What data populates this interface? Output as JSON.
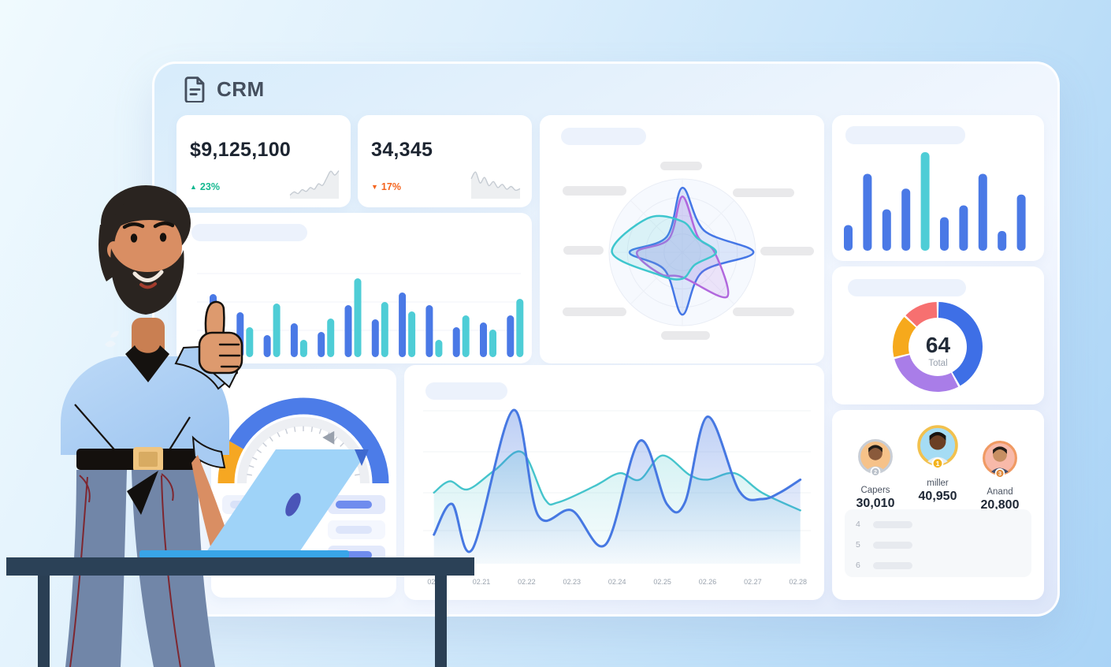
{
  "app": {
    "title": "CRM"
  },
  "kpis": [
    {
      "value": "$9,125,100",
      "delta": "23%",
      "direction": "up",
      "spark": [
        1,
        2.2,
        1.6,
        3,
        2.4,
        3.8,
        3.2,
        5.2,
        4.6,
        7.2,
        9.8,
        8.4,
        10
      ]
    },
    {
      "value": "34,345",
      "delta": "17%",
      "direction": "down",
      "spark": [
        7,
        9.5,
        5.5,
        7.5,
        4.5,
        6,
        3.8,
        5,
        3.2,
        4.2,
        2.8,
        3.4
      ]
    }
  ],
  "leaderboard": {
    "entries": [
      {
        "rank": "2",
        "name": "Capers",
        "value": "30,010",
        "ring": "#c9ced6",
        "bg": "#f6c289",
        "badge": "#b9c0c9",
        "skin": "#8a5a3b",
        "hair": "#201b17",
        "shirt": "#c8ced5"
      },
      {
        "rank": "1",
        "name": "miller",
        "value": "40,950",
        "ring": "#f2c14e",
        "bg": "#a5dcf4",
        "badge": "#f3b31e",
        "skin": "#6b3f24",
        "hair": "#171310",
        "shirt": "#e8eef2"
      },
      {
        "rank": "3",
        "name": "Anand",
        "value": "20,800",
        "ring": "#f09a63",
        "bg": "#f8b9a9",
        "badge": "#e08a3c",
        "skin": "#c78f62",
        "hair": "#241d18",
        "shirt": "#46506b"
      }
    ],
    "more_rows": [
      "4",
      "5",
      "6"
    ]
  },
  "chart_data": [
    {
      "type": "bar",
      "title": "",
      "categories": [],
      "series": [
        {
          "name": "series-blue",
          "color": "#4a79e6",
          "values": [
            80,
            57,
            28,
            43,
            32,
            66,
            48,
            82,
            66,
            38,
            44,
            53
          ]
        },
        {
          "name": "series-teal",
          "color": "#4ecdd6",
          "values": [
            33,
            38,
            68,
            22,
            49,
            100,
            70,
            58,
            22,
            53,
            35,
            74
          ]
        }
      ],
      "ylim": [
        0,
        100
      ],
      "grid": true
    },
    {
      "type": "radar",
      "axes": 8,
      "max": 100,
      "series": [
        {
          "name": "series-blue",
          "color": "#4577e6",
          "values": [
            88,
            42,
            97,
            38,
            85,
            34,
            72,
            30
          ]
        },
        {
          "name": "series-purple",
          "color": "#b168dd",
          "values": [
            76,
            30,
            44,
            86,
            34,
            42,
            62,
            26
          ]
        },
        {
          "name": "series-teal",
          "color": "#3ec6ce",
          "values": [
            42,
            28,
            46,
            24,
            36,
            44,
            96,
            66
          ]
        }
      ]
    },
    {
      "type": "bar",
      "title": "",
      "categories": [],
      "values": [
        26,
        78,
        42,
        63,
        100,
        34,
        46,
        78,
        20,
        57
      ],
      "color": "#4a79e6",
      "highlight_index": 4,
      "highlight_color": "#4ecdd6",
      "ylim": [
        0,
        100
      ],
      "grid": false
    },
    {
      "type": "donut",
      "center_value": "64",
      "center_label": "Total",
      "segments": [
        {
          "value": 42,
          "color": "#3e6fe6"
        },
        {
          "value": 29,
          "color": "#a97de8"
        },
        {
          "value": 16,
          "color": "#f6a91c"
        },
        {
          "value": 13,
          "color": "#f77070"
        }
      ]
    },
    {
      "type": "gauge",
      "value": "55",
      "min": 0,
      "max": 100,
      "segments": [
        {
          "to": 16.5,
          "color": "#f6a722"
        },
        {
          "to": 100,
          "color": "#4c7ce8"
        }
      ],
      "pointer_fraction": 0.67
    },
    {
      "type": "area",
      "ylim": [
        0,
        100
      ],
      "grid": true,
      "x_labels": [
        "02.20",
        "02.21",
        "02.22",
        "02.23",
        "02.24",
        "02.25",
        "02.26",
        "02.27",
        "02.28"
      ],
      "series": [
        {
          "name": "series-teal",
          "color": "#45c4cc",
          "points": [
            [
              19.95,
              44
            ],
            [
              20.3,
              51
            ],
            [
              20.7,
              46
            ],
            [
              21.3,
              58
            ],
            [
              21.9,
              69
            ],
            [
              22.4,
              40
            ],
            [
              22.7,
              38
            ],
            [
              23.5,
              48
            ],
            [
              24.05,
              56
            ],
            [
              24.5,
              52
            ],
            [
              25.0,
              67
            ],
            [
              25.6,
              55
            ],
            [
              26.0,
              52
            ],
            [
              26.6,
              56
            ],
            [
              27.2,
              44
            ],
            [
              28.05,
              33
            ]
          ]
        },
        {
          "name": "series-blue",
          "color": "#4678e2",
          "points": [
            [
              19.95,
              18
            ],
            [
              20.35,
              37
            ],
            [
              20.8,
              9
            ],
            [
              21.7,
              95
            ],
            [
              22.25,
              30
            ],
            [
              23.0,
              33
            ],
            [
              23.75,
              12
            ],
            [
              24.5,
              76
            ],
            [
              25.1,
              37
            ],
            [
              25.5,
              38
            ],
            [
              26.0,
              91
            ],
            [
              26.7,
              45
            ],
            [
              27.2,
              40
            ],
            [
              27.6,
              44
            ],
            [
              28.05,
              52
            ]
          ]
        }
      ]
    }
  ]
}
